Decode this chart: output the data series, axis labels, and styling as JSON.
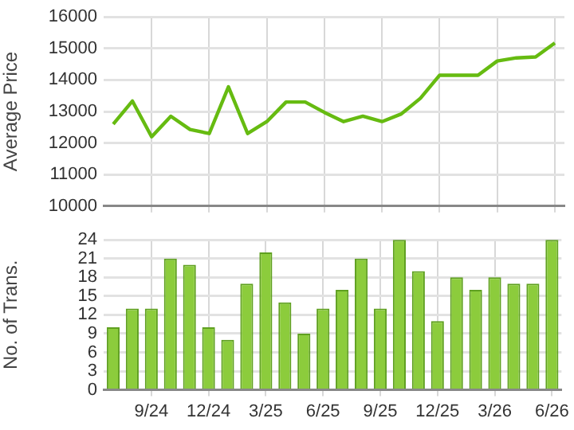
{
  "chart_data": [
    {
      "type": "line",
      "ylabel": "Average Price",
      "categories": [
        null,
        null,
        null,
        null,
        null,
        null,
        null,
        null,
        null,
        null,
        null,
        null,
        null,
        null,
        null,
        null,
        null,
        null,
        null,
        null,
        null,
        null,
        null,
        null
      ],
      "series": [
        {
          "color": "#66bb11",
          "values": [
            12600,
            13330,
            12200,
            12850,
            12430,
            12300,
            13780,
            12300,
            12680,
            13300,
            13300,
            12970,
            12680,
            12850,
            12680,
            12920,
            13420,
            14150,
            14150,
            14150,
            14600,
            14700,
            14730,
            15170
          ]
        }
      ],
      "ylim": [
        10000,
        16000
      ],
      "yticks": [
        10000,
        11000,
        12000,
        13000,
        14000,
        15000,
        16000
      ],
      "grid": true,
      "legend": false,
      "marker": "none",
      "tick_labels": "y"
    },
    {
      "type": "bar",
      "ylabel": "No. of Trans.",
      "categories": [
        null,
        null,
        "9/24",
        null,
        null,
        "12/24",
        null,
        null,
        "3/25",
        null,
        null,
        "6/25",
        null,
        null,
        "9/25",
        null,
        null,
        "12/25",
        null,
        null,
        "3/26",
        null,
        null,
        "6/26"
      ],
      "series": [
        {
          "color": "#8ccc3c",
          "values": [
            10,
            13,
            13,
            21,
            20,
            10,
            8,
            17,
            22,
            14,
            9,
            13,
            16,
            21,
            13,
            24,
            19,
            11,
            18,
            16,
            18,
            17,
            17,
            24
          ]
        }
      ],
      "ylim": [
        0,
        24
      ],
      "yticks": [
        0,
        3,
        6,
        9,
        12,
        15,
        18,
        21,
        24
      ],
      "grid": true,
      "legend": false
    }
  ]
}
